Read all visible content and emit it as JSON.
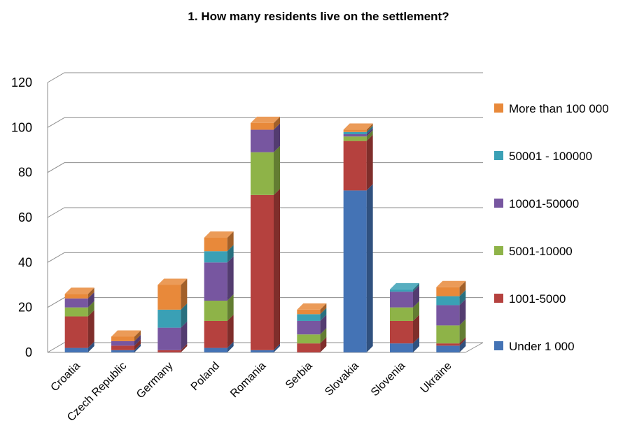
{
  "chart_data": {
    "type": "bar",
    "stacked": true,
    "three_d": true,
    "title": "1. How many residents live on the settlement?",
    "xlabel": "",
    "ylabel": "",
    "ylim": [
      0,
      120
    ],
    "yticks": [
      0,
      20,
      40,
      60,
      80,
      100,
      120
    ],
    "grid": true,
    "legend_position": "right",
    "categories": [
      "Croatia",
      "Czech Republic",
      "Germany",
      "Poland",
      "Romania",
      "Serbia",
      "Slovakia",
      "Slovenia",
      "Ukraine"
    ],
    "series": [
      {
        "name": "Under 1 000",
        "color": "#4473b5",
        "values": [
          2,
          1,
          0,
          2,
          1,
          0,
          72,
          4,
          3
        ]
      },
      {
        "name": "1001-5000",
        "color": "#b5413e",
        "values": [
          14,
          2,
          1,
          12,
          69,
          4,
          22,
          10,
          1
        ]
      },
      {
        "name": "5001-10000",
        "color": "#8eb348",
        "values": [
          4,
          0,
          0,
          9,
          19,
          4,
          2,
          6,
          8
        ]
      },
      {
        "name": "10001-50000",
        "color": "#7756a0",
        "values": [
          4,
          2,
          10,
          17,
          10,
          6,
          1,
          7,
          9
        ]
      },
      {
        "name": "50001 - 100000",
        "color": "#3aa0b5",
        "values": [
          0,
          0,
          8,
          5,
          0,
          3,
          1,
          1,
          4
        ]
      },
      {
        "name": "More than 100 000",
        "color": "#e8893a",
        "values": [
          2,
          2,
          11,
          6,
          3,
          2,
          1,
          0,
          4
        ]
      }
    ]
  }
}
